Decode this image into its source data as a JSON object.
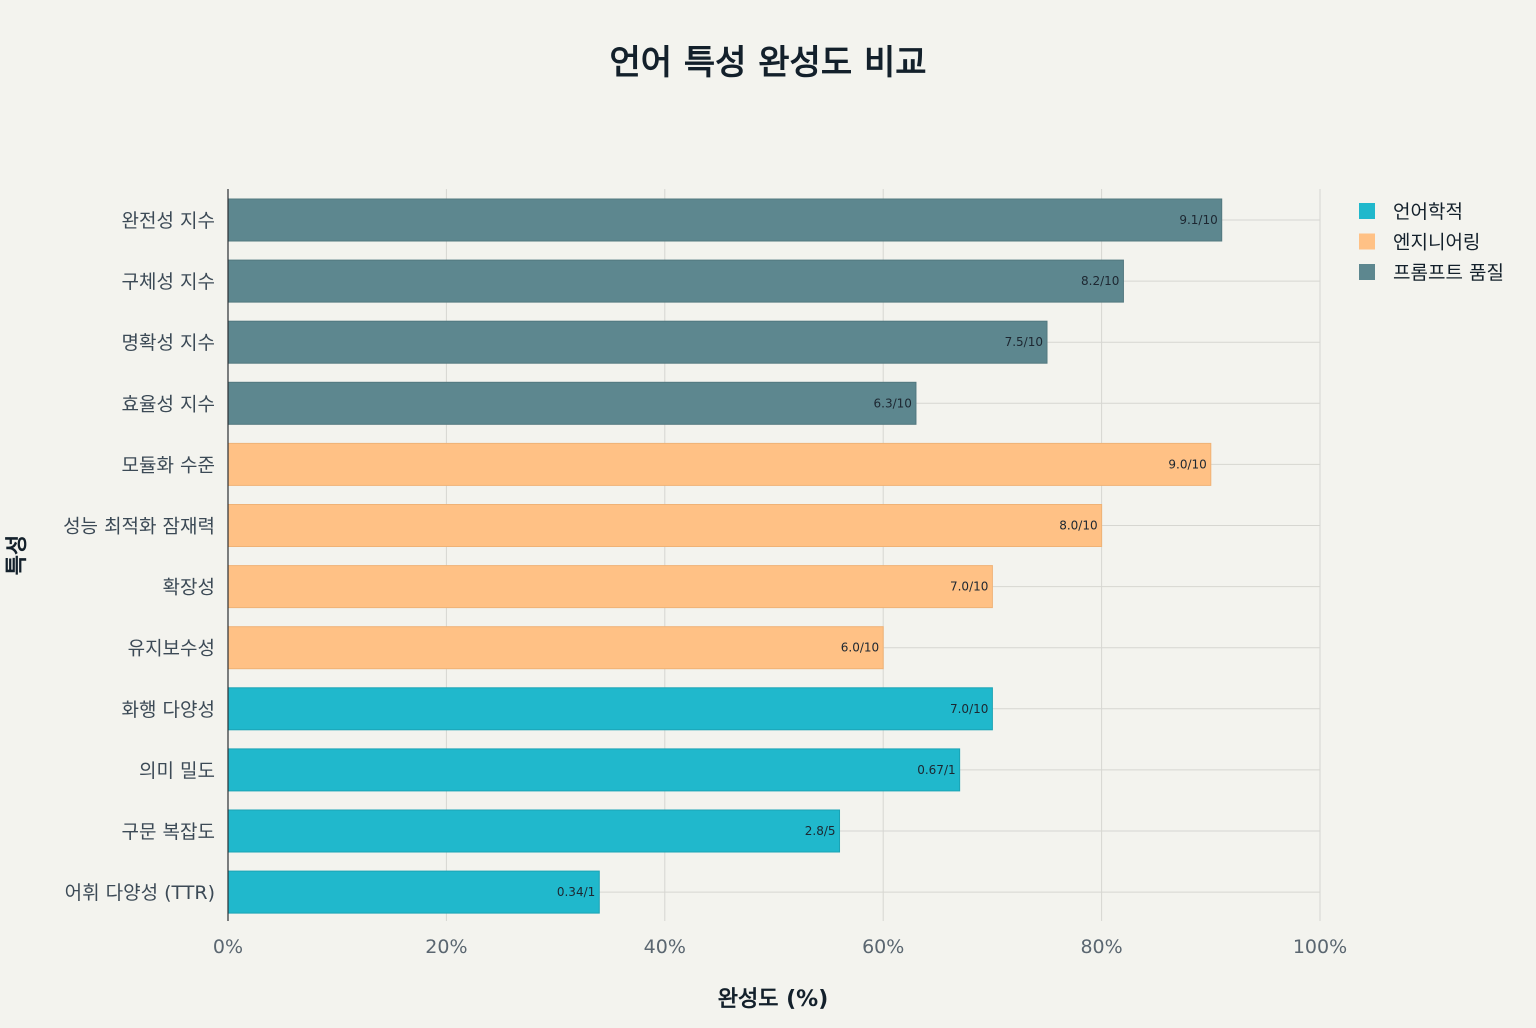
{
  "chart_data": {
    "type": "bar",
    "orientation": "horizontal",
    "title": "언어 특성 완성도 비교",
    "xlabel": "완성도 (%)",
    "ylabel": "특성",
    "xlim": [
      0,
      100
    ],
    "xticks": [
      0,
      20,
      40,
      60,
      80,
      100
    ],
    "xtick_labels": [
      "0%",
      "20%",
      "40%",
      "60%",
      "80%",
      "100%"
    ],
    "grid": true,
    "legend": {
      "placement": "top-right",
      "entries": [
        {
          "name": "언어학적",
          "color": "#20b8cc"
        },
        {
          "name": "엔지니어링",
          "color": "#ffc185"
        },
        {
          "name": "프롬프트 품질",
          "color": "#5d878f"
        }
      ]
    },
    "bars": [
      {
        "category": "완전성 지수",
        "value": 91,
        "label": "9.1/10",
        "group": "프롬프트 품질"
      },
      {
        "category": "구체성 지수",
        "value": 82,
        "label": "8.2/10",
        "group": "프롬프트 품질"
      },
      {
        "category": "명확성 지수",
        "value": 75,
        "label": "7.5/10",
        "group": "프롬프트 품질"
      },
      {
        "category": "효율성 지수",
        "value": 63,
        "label": "6.3/10",
        "group": "프롬프트 품질"
      },
      {
        "category": "모듈화 수준",
        "value": 90,
        "label": "9.0/10",
        "group": "엔지니어링"
      },
      {
        "category": "성능 최적화 잠재력",
        "value": 80,
        "label": "8.0/10",
        "group": "엔지니어링"
      },
      {
        "category": "확장성",
        "value": 70,
        "label": "7.0/10",
        "group": "엔지니어링"
      },
      {
        "category": "유지보수성",
        "value": 60,
        "label": "6.0/10",
        "group": "엔지니어링"
      },
      {
        "category": "화행 다양성",
        "value": 70,
        "label": "7.0/10",
        "group": "언어학적"
      },
      {
        "category": "의미 밀도",
        "value": 67,
        "label": "0.67/1",
        "group": "언어학적"
      },
      {
        "category": "구문 복잡도",
        "value": 56,
        "label": "2.8/5",
        "group": "언어학적"
      },
      {
        "category": "어휘 다양성 (TTR)",
        "value": 34,
        "label": "0.34/1",
        "group": "언어학적"
      }
    ]
  }
}
